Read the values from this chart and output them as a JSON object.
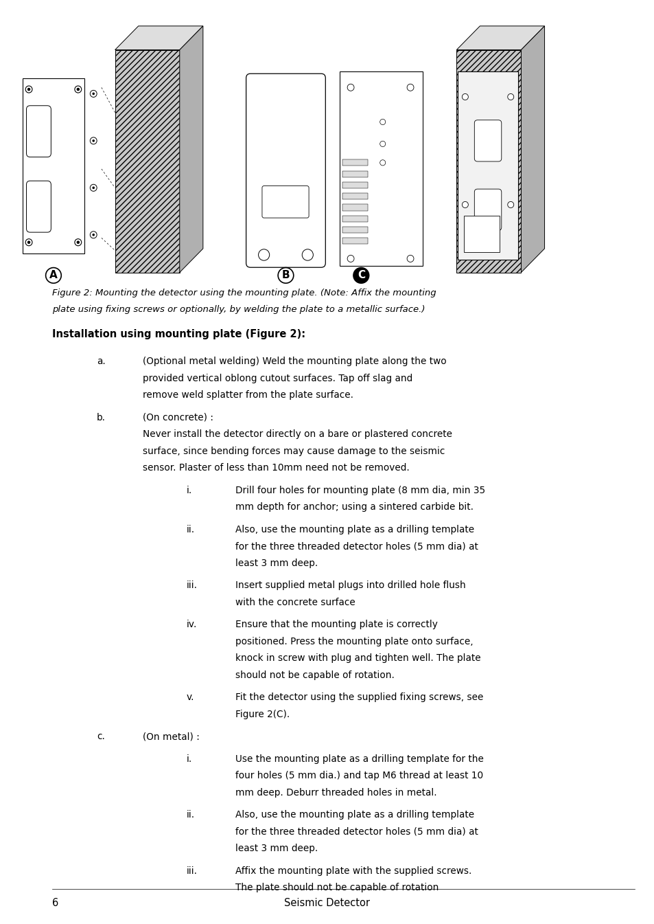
{
  "page_bg": "#ffffff",
  "figure_caption_italic": "Figure 2: Mounting the detector using the mounting plate. (Note: Affix the mounting\nplate using fixing screws or optionally, by welding the plate to a metallic surface.)",
  "section_title": "Installation using mounting plate (Figure 2):",
  "items": [
    {
      "label": "a.",
      "text": "(Optional metal welding) Weld the mounting plate along the two\nprovided vertical oblong cutout surfaces. Tap off slag and\nremove weld splatter from the plate surface.",
      "indent": 1
    },
    {
      "label": "b.",
      "text": "(On concrete) :\nNever install the detector directly on a bare or plastered concrete\nsurface, since bending forces may cause damage to the seismic\nsensor. Plaster of less than 10mm need not be removed.",
      "indent": 1
    },
    {
      "label": "i.",
      "text": "Drill four holes for mounting plate (8 mm dia, min 35\nmm depth for anchor; using a sintered carbide bit.",
      "indent": 2
    },
    {
      "label": "ii.",
      "text": "Also, use the mounting plate as a drilling template\nfor the three threaded detector holes (5 mm dia) at\nleast 3 mm deep.",
      "indent": 2
    },
    {
      "label": "iii.",
      "text": "Insert supplied metal plugs into drilled hole flush\nwith the concrete surface",
      "indent": 2
    },
    {
      "label": "iv.",
      "text": "Ensure that the mounting plate is correctly\npositioned. Press the mounting plate onto surface,\nknock in screw with plug and tighten well. The plate\nshould not be capable of rotation.",
      "indent": 2
    },
    {
      "label": "v.",
      "text": "Fit the detector using the supplied fixing screws, see\nFigure 2(C).",
      "indent": 2
    },
    {
      "label": "c.",
      "text": "(On metal) :",
      "indent": 1
    },
    {
      "label": "i.",
      "text": "Use the mounting plate as a drilling template for the\nfour holes (5 mm dia.) and tap M6 thread at least 10\nmm deep. Deburr threaded holes in metal.",
      "indent": 2
    },
    {
      "label": "ii.",
      "text": "Also, use the mounting plate as a drilling template\nfor the three threaded detector holes (5 mm dia) at\nleast 3 mm deep.",
      "indent": 2
    },
    {
      "label": "iii.",
      "text": "Affix the mounting plate with the supplied screws.\nThe plate should not be capable of rotation",
      "indent": 2
    }
  ],
  "footer_number": "6",
  "footer_text": "Seismic Detector",
  "text_color": "#000000"
}
